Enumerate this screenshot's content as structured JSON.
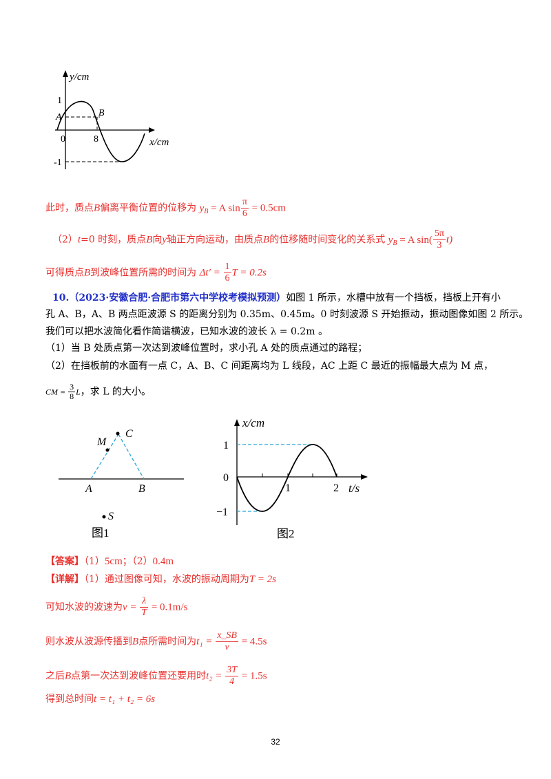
{
  "fig_top": {
    "y_axis_label": "y/cm",
    "x_axis_label": "x/cm",
    "tick_1": "1",
    "tick_neg1": "-1",
    "tick_0": "0",
    "tick_8": "8",
    "point_A": "A",
    "point_B": "B"
  },
  "sol9": {
    "line1_text": "此时，质点",
    "line1_B": "B",
    "line1_text2": "偏离平衡位置的位移为",
    "line1_formula_lhs": "y",
    "line1_formula_sub": "B",
    "line1_formula_mid": " = A sin",
    "line1_frac_num": "π",
    "line1_frac_den": "6",
    "line1_formula_rhs": " = 0.5cm",
    "line2_prefix": "（2）",
    "line2_t": "t",
    "line2_text": "=0 时刻，质点",
    "line2_B": "B",
    "line2_text2": "向",
    "line2_y": "y",
    "line2_text3": "轴正方向运动，由质点",
    "line2_B2": "B",
    "line2_text4": "的位移随时间变化的关系式",
    "line2_formula_lhs": "y",
    "line2_formula_sub": "B",
    "line2_formula_mid": " = A sin(",
    "line2_frac_num": "5π",
    "line2_frac_den": "3",
    "line2_formula_rhs": "t)",
    "line3_text": "可得质点",
    "line3_B": "B",
    "line3_text2": "到波峰位置所需的时间为",
    "line3_formula_lhs": "Δt′ = ",
    "line3_frac_num": "1",
    "line3_frac_den": "6",
    "line3_formula_rhs": "T = 0.2s"
  },
  "q10": {
    "number": "10.",
    "source": "（2023·安徽合肥·合肥市第六中学校考模拟预测）",
    "line1_rest": "如图 1 所示，水槽中放有一个挡板，挡板上开有小",
    "line2": "孔 A、B，A、B 两点距波源 S 的距离分别为 0.35m、0.45m。0 时刻波源 S 开始振动，振动图像如图 2 所示。",
    "line3": "我们可以把水波简化看作简谐横波，已知水波的波长 λ = 0.2m 。",
    "sub1": "（1）当 B 处质点第一次达到波峰位置时，求小孔 A 处的质点通过的路程；",
    "sub2": "（2）在挡板前的水面有一点 C，A、B、C 间距离均为 L 线段，AC 上距 C 最近的振幅最大点为 M 点，",
    "sub2b_lhs": "CM = ",
    "sub2b_num": "3",
    "sub2b_den": "8",
    "sub2b_rhs": "L",
    "sub2b_text": "，求 L 的大小。"
  },
  "fig1": {
    "label_C": "C",
    "label_M": "M",
    "label_A": "A",
    "label_B": "B",
    "label_S": "S",
    "caption": "图1"
  },
  "fig2": {
    "y_axis_label": "x/cm",
    "x_axis_label": "t/s",
    "tick_1": "1",
    "tick_0": "0",
    "tick_neg1": "−1",
    "tick_t1": "1",
    "tick_t2": "2",
    "caption": "图2"
  },
  "answer": {
    "label": "【答案】",
    "part1": "（1）",
    "val1": "5cm",
    "sep": "；",
    "part2": "（2）",
    "val2": "0.4m"
  },
  "detail": {
    "label": "【详解】",
    "l1_text": "（1）通过图像可知，水波的振动周期为",
    "l1_formula": "T = 2s",
    "l2_text": "可知水波的波速为",
    "l2_lhs": "v = ",
    "l2_num": "λ",
    "l2_den": "T",
    "l2_rhs": " = 0.1m/s",
    "l3_text": "则水波从波源传播到",
    "l3_B": "B",
    "l3_text2": "点所需时间为",
    "l3_lhs": "t₁ = ",
    "l3_num": "x_SB",
    "l3_den": "v",
    "l3_rhs": " = 4.5s",
    "l4_text": "之后",
    "l4_B": "B",
    "l4_text2": "点第一次达到波峰位置还要用时",
    "l4_lhs": "t₂ = ",
    "l4_num": "3T",
    "l4_den": "4",
    "l4_rhs": " = 1.5s",
    "l5_text": "得到总时间",
    "l5_formula": "t = t₁ + t₂ = 6s"
  },
  "page_number": "32"
}
